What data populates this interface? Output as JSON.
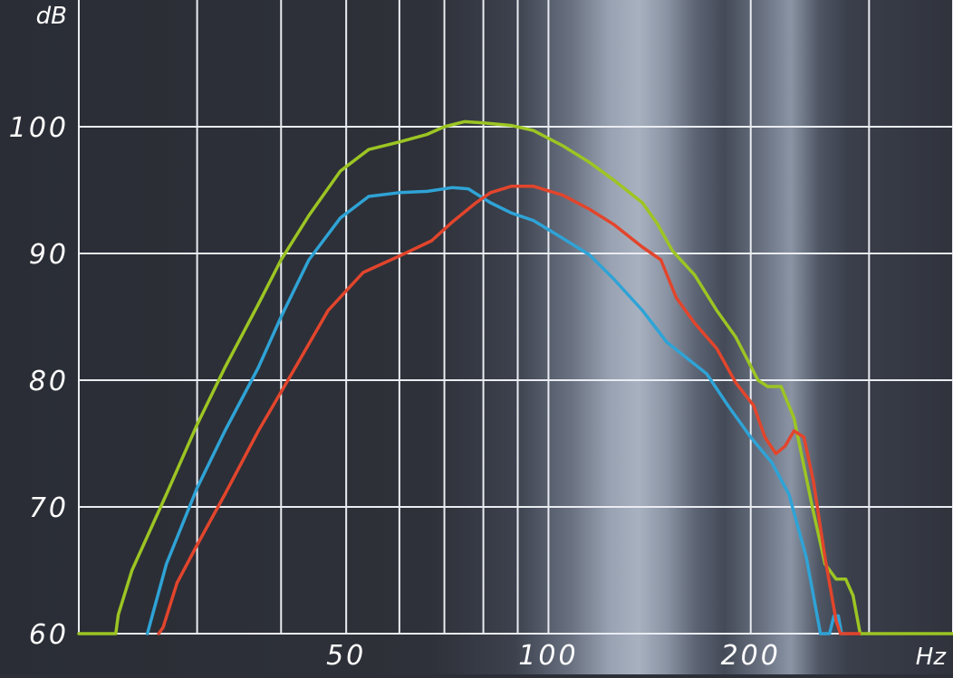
{
  "chart_data": {
    "type": "line",
    "title": "",
    "ylabel": "dB",
    "xlabel": "Hz",
    "x_scale": "log",
    "xlim": [
      20,
      400
    ],
    "ylim": [
      60,
      110
    ],
    "y_ticks": [
      "60",
      "70",
      "80",
      "90",
      "100"
    ],
    "x_tick_labels": [
      {
        "value": 50,
        "label": "50"
      },
      {
        "value": 100,
        "label": "100"
      },
      {
        "value": 200,
        "label": "200"
      }
    ],
    "grid": true,
    "series": [
      {
        "color": "#9cc523",
        "points": [
          [
            20,
            60
          ],
          [
            22.7,
            60
          ],
          [
            22.9,
            61.5
          ],
          [
            24,
            65
          ],
          [
            27,
            71
          ],
          [
            30,
            76.5
          ],
          [
            33,
            81
          ],
          [
            37,
            86
          ],
          [
            40,
            89.5
          ],
          [
            44,
            93
          ],
          [
            49,
            96.5
          ],
          [
            54,
            98.2
          ],
          [
            60,
            98.8
          ],
          [
            66,
            99.4
          ],
          [
            70,
            100
          ],
          [
            75,
            100.4
          ],
          [
            80,
            100.3
          ],
          [
            88,
            100.1
          ],
          [
            95,
            99.7
          ],
          [
            105,
            98.5
          ],
          [
            115,
            97.2
          ],
          [
            125,
            95.8
          ],
          [
            138,
            94
          ],
          [
            145,
            92.4
          ],
          [
            153,
            90.2
          ],
          [
            165,
            88.3
          ],
          [
            178,
            85.5
          ],
          [
            190,
            83.4
          ],
          [
            205,
            80
          ],
          [
            212,
            79.5
          ],
          [
            222,
            79.5
          ],
          [
            232,
            77
          ],
          [
            247,
            70
          ],
          [
            258,
            65.5
          ],
          [
            268,
            64.3
          ],
          [
            277,
            64.3
          ],
          [
            284,
            63
          ],
          [
            291,
            60
          ],
          [
            400,
            60
          ]
        ]
      },
      {
        "color": "#2fa3d6",
        "points": [
          [
            25.3,
            60
          ],
          [
            25.6,
            61
          ],
          [
            27,
            65.5
          ],
          [
            30,
            71.5
          ],
          [
            33,
            76
          ],
          [
            37,
            81
          ],
          [
            40,
            85
          ],
          [
            44,
            89.5
          ],
          [
            49,
            92.8
          ],
          [
            54,
            94.5
          ],
          [
            60,
            94.8
          ],
          [
            66,
            94.9
          ],
          [
            72,
            95.2
          ],
          [
            76,
            95.1
          ],
          [
            82,
            94
          ],
          [
            88,
            93.2
          ],
          [
            95,
            92.6
          ],
          [
            105,
            91.2
          ],
          [
            115,
            89.9
          ],
          [
            125,
            88
          ],
          [
            138,
            85.5
          ],
          [
            150,
            83
          ],
          [
            162,
            81.6
          ],
          [
            172,
            80.5
          ],
          [
            185,
            78
          ],
          [
            200,
            75.5
          ],
          [
            215,
            73.5
          ],
          [
            228,
            71
          ],
          [
            242,
            66
          ],
          [
            254,
            60
          ],
          [
            262,
            60
          ],
          [
            266,
            61.4
          ],
          [
            270,
            61.4
          ],
          [
            273,
            60
          ],
          [
            277,
            60
          ]
        ]
      },
      {
        "color": "#e2452c",
        "points": [
          [
            26.3,
            60
          ],
          [
            26.7,
            60.5
          ],
          [
            28,
            64
          ],
          [
            30,
            67
          ],
          [
            33,
            71
          ],
          [
            37,
            76
          ],
          [
            42,
            81
          ],
          [
            47,
            85.5
          ],
          [
            53,
            88.5
          ],
          [
            60,
            89.8
          ],
          [
            67,
            91
          ],
          [
            72,
            92.5
          ],
          [
            78,
            94
          ],
          [
            82,
            94.8
          ],
          [
            88,
            95.3
          ],
          [
            95,
            95.3
          ],
          [
            105,
            94.6
          ],
          [
            115,
            93.5
          ],
          [
            125,
            92.3
          ],
          [
            138,
            90.5
          ],
          [
            147,
            89.5
          ],
          [
            155,
            86.5
          ],
          [
            165,
            84.5
          ],
          [
            178,
            82.5
          ],
          [
            190,
            79.8
          ],
          [
            202,
            78
          ],
          [
            210,
            75.5
          ],
          [
            218,
            74.2
          ],
          [
            225,
            74.8
          ],
          [
            232,
            76
          ],
          [
            240,
            75.5
          ],
          [
            248,
            72
          ],
          [
            258,
            66
          ],
          [
            268,
            61
          ],
          [
            272,
            60
          ],
          [
            290,
            60
          ]
        ]
      }
    ]
  }
}
